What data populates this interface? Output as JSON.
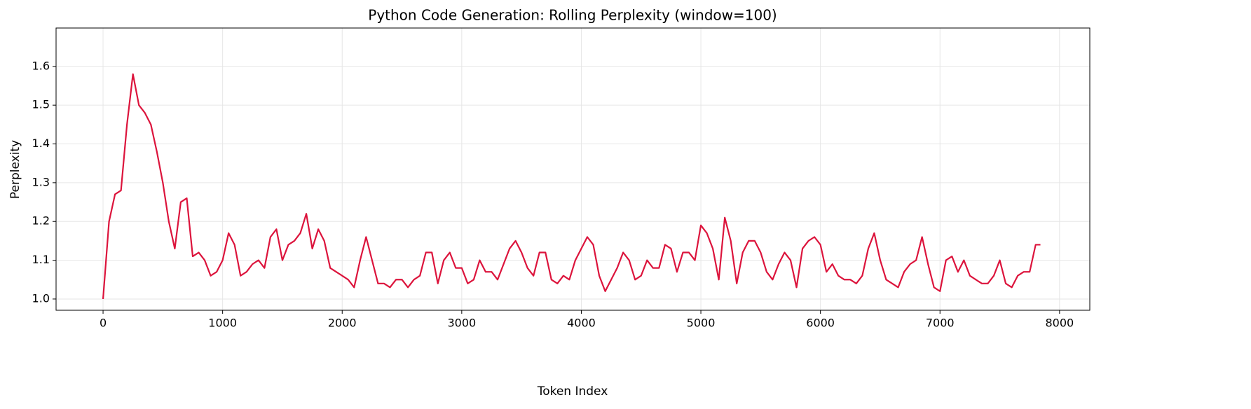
{
  "chart_data": {
    "type": "line",
    "title": "Python Code Generation: Rolling Perplexity (window=100)",
    "xlabel": "Token Index",
    "ylabel": "Perplexity",
    "xlim": [
      -393,
      8253
    ],
    "ylim": [
      0.971,
      1.699
    ],
    "xticks": [
      0,
      1000,
      2000,
      3000,
      4000,
      5000,
      6000,
      7000,
      8000
    ],
    "yticks": [
      {
        "value": 1,
        "label": "1.0"
      },
      1.1,
      1.2,
      1.3,
      1.4,
      1.5,
      1.6
    ],
    "grid": true,
    "series": [
      {
        "color": "#dc143c",
        "x": [
          0,
          50,
          100,
          150,
          200,
          250,
          300,
          350,
          400,
          450,
          500,
          550,
          600,
          650,
          700,
          750,
          800,
          850,
          900,
          950,
          1000,
          1050,
          1100,
          1150,
          1200,
          1250,
          1300,
          1350,
          1400,
          1450,
          1500,
          1550,
          1600,
          1650,
          1700,
          1750,
          1800,
          1850,
          1900,
          1950,
          2000,
          2050,
          2100,
          2150,
          2200,
          2250,
          2300,
          2350,
          2400,
          2450,
          2500,
          2550,
          2600,
          2650,
          2700,
          2750,
          2800,
          2850,
          2900,
          2950,
          3000,
          3050,
          3100,
          3150,
          3200,
          3250,
          3300,
          3350,
          3400,
          3450,
          3500,
          3550,
          3600,
          3650,
          3700,
          3750,
          3800,
          3850,
          3900,
          3950,
          4000,
          4050,
          4100,
          4150,
          4200,
          4250,
          4300,
          4350,
          4400,
          4450,
          4500,
          4550,
          4600,
          4650,
          4700,
          4750,
          4800,
          4850,
          4900,
          4950,
          5000,
          5050,
          5100,
          5150,
          5200,
          5250,
          5300,
          5350,
          5400,
          5450,
          5500,
          5550,
          5600,
          5650,
          5700,
          5750,
          5800,
          5850,
          5900,
          5950,
          6000,
          6050,
          6100,
          6150,
          6200,
          6250,
          6300,
          6350,
          6400,
          6450,
          6500,
          6550,
          6600,
          6650,
          6700,
          6750,
          6800,
          6850,
          6900,
          6950,
          7000,
          7050,
          7100,
          7150,
          7200,
          7250,
          7300,
          7350,
          7400,
          7450,
          7500,
          7550,
          7600,
          7650,
          7700,
          7750,
          7800,
          7840
        ],
        "values": [
          1.0,
          1.2,
          1.27,
          1.28,
          1.45,
          1.58,
          1.5,
          1.48,
          1.45,
          1.38,
          1.3,
          1.2,
          1.13,
          1.25,
          1.26,
          1.11,
          1.12,
          1.1,
          1.06,
          1.07,
          1.1,
          1.17,
          1.14,
          1.06,
          1.07,
          1.09,
          1.1,
          1.08,
          1.16,
          1.18,
          1.1,
          1.14,
          1.15,
          1.17,
          1.22,
          1.13,
          1.18,
          1.15,
          1.08,
          1.07,
          1.06,
          1.05,
          1.03,
          1.1,
          1.16,
          1.1,
          1.04,
          1.04,
          1.03,
          1.05,
          1.05,
          1.03,
          1.05,
          1.06,
          1.12,
          1.12,
          1.04,
          1.1,
          1.12,
          1.08,
          1.08,
          1.04,
          1.05,
          1.1,
          1.07,
          1.07,
          1.05,
          1.09,
          1.13,
          1.15,
          1.12,
          1.08,
          1.06,
          1.12,
          1.12,
          1.05,
          1.04,
          1.06,
          1.05,
          1.1,
          1.13,
          1.16,
          1.14,
          1.06,
          1.02,
          1.05,
          1.08,
          1.12,
          1.1,
          1.05,
          1.06,
          1.1,
          1.08,
          1.08,
          1.14,
          1.13,
          1.07,
          1.12,
          1.12,
          1.1,
          1.19,
          1.17,
          1.13,
          1.05,
          1.21,
          1.15,
          1.04,
          1.12,
          1.15,
          1.15,
          1.12,
          1.07,
          1.05,
          1.09,
          1.12,
          1.1,
          1.03,
          1.13,
          1.15,
          1.16,
          1.14,
          1.07,
          1.09,
          1.06,
          1.05,
          1.05,
          1.04,
          1.06,
          1.13,
          1.17,
          1.1,
          1.05,
          1.04,
          1.03,
          1.07,
          1.09,
          1.1,
          1.16,
          1.09,
          1.03,
          1.02,
          1.1,
          1.11,
          1.07,
          1.1,
          1.06,
          1.05,
          1.04,
          1.04,
          1.06,
          1.1,
          1.04,
          1.03,
          1.06,
          1.07,
          1.07,
          1.14,
          1.14
        ]
      }
    ]
  }
}
